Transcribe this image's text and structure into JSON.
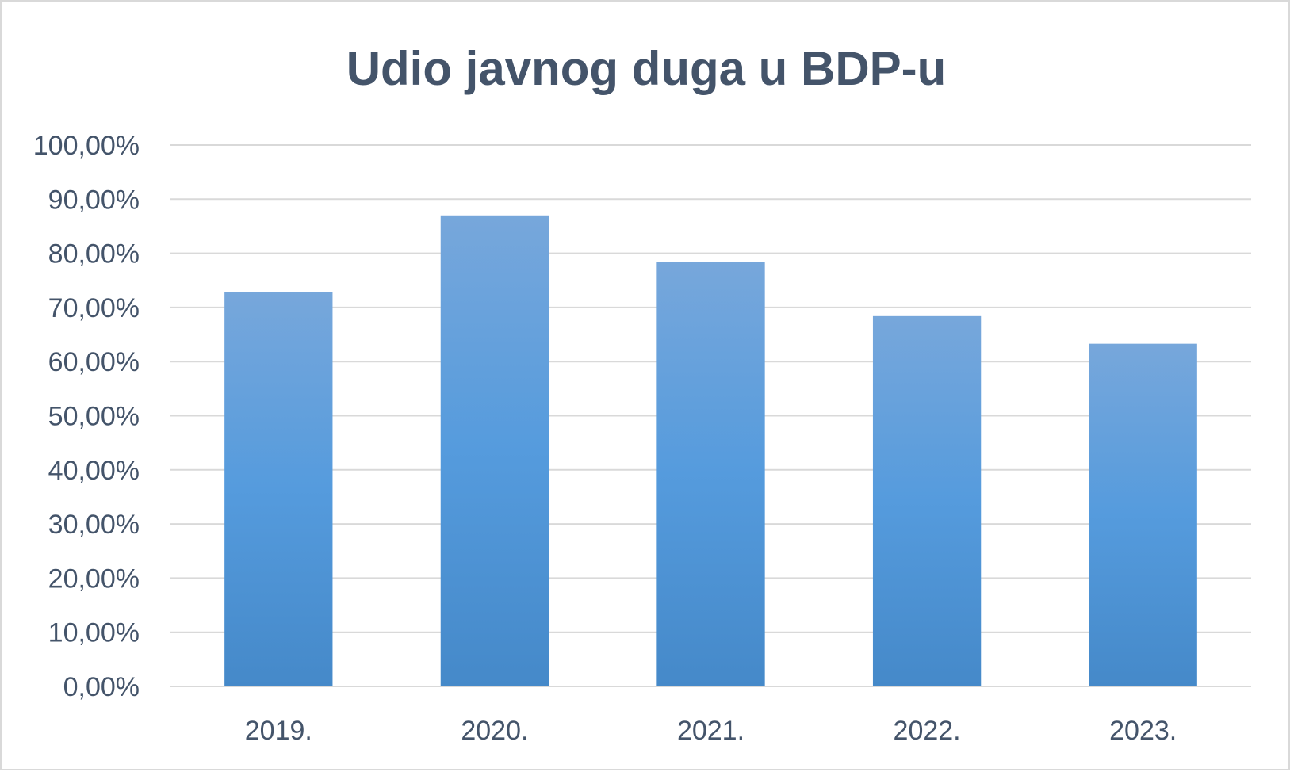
{
  "chart_data": {
    "type": "bar",
    "title": "Udio javnog duga u BDP-u",
    "xlabel": "",
    "ylabel": "",
    "categories": [
      "2019.",
      "2020.",
      "2021.",
      "2022.",
      "2023."
    ],
    "values": [
      72.8,
      87.0,
      78.4,
      68.4,
      63.3
    ],
    "ylim": [
      0,
      100
    ],
    "yticks": [
      0,
      10,
      20,
      30,
      40,
      50,
      60,
      70,
      80,
      90,
      100
    ],
    "ytick_labels": [
      "0,00%",
      "10,00%",
      "20,00%",
      "30,00%",
      "40,00%",
      "50,00%",
      "60,00%",
      "70,00%",
      "80,00%",
      "90,00%",
      "100,00%"
    ],
    "grid": true,
    "legend": "none",
    "colors": {
      "bar_top": "#77a7db",
      "bar_mid": "#559bdd",
      "bar_bottom": "#4589c9",
      "text": "#44546a",
      "grid": "#d9d9d9"
    }
  }
}
